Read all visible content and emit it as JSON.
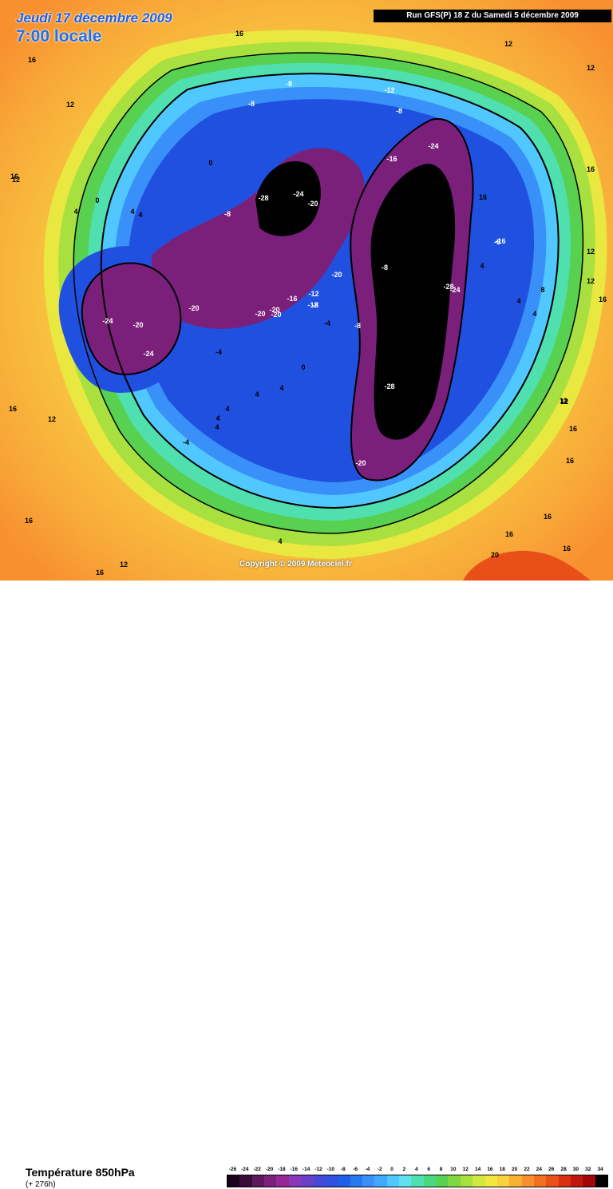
{
  "header": {
    "date": "Jeudi 17 décembre 2009",
    "time": "7:00 locale",
    "run": "Run GFS(P) 18 Z du Samedi 5 décembre 2009"
  },
  "map": {
    "copyright": "Copyright © 2009 Meteociel.fr",
    "labels": [
      {
        "text": "16"
      },
      {
        "text": "12"
      },
      {
        "text": "12"
      },
      {
        "text": "16"
      },
      {
        "text": "16"
      },
      {
        "text": "16"
      },
      {
        "text": "12"
      },
      {
        "text": "16"
      },
      {
        "text": "12"
      },
      {
        "text": "16"
      },
      {
        "text": "12"
      },
      {
        "text": "12"
      },
      {
        "text": "16"
      },
      {
        "text": "12"
      },
      {
        "text": "16"
      },
      {
        "text": "16"
      },
      {
        "text": "12"
      },
      {
        "text": "16"
      },
      {
        "text": "20"
      },
      {
        "text": "16"
      },
      {
        "text": "16"
      },
      {
        "text": "16"
      },
      {
        "text": "16"
      },
      {
        "text": "12"
      },
      {
        "text": "-8"
      },
      {
        "text": "-8"
      },
      {
        "text": "-8"
      },
      {
        "text": "-12"
      },
      {
        "text": "-8"
      },
      {
        "text": "-16"
      },
      {
        "text": "-24"
      },
      {
        "text": "-28"
      },
      {
        "text": "-24"
      },
      {
        "text": "-20"
      },
      {
        "text": "-8"
      },
      {
        "text": "0"
      },
      {
        "text": "0"
      },
      {
        "text": "4"
      },
      {
        "text": "4"
      },
      {
        "text": "4"
      },
      {
        "text": "4"
      },
      {
        "text": "-16"
      },
      {
        "text": "-8"
      },
      {
        "text": "-28"
      },
      {
        "text": "-24"
      },
      {
        "text": "-20"
      },
      {
        "text": "-12"
      },
      {
        "text": "4"
      },
      {
        "text": "8"
      },
      {
        "text": "4"
      },
      {
        "text": "-24"
      },
      {
        "text": "-20"
      },
      {
        "text": "-24"
      },
      {
        "text": "-20"
      },
      {
        "text": "-20"
      },
      {
        "text": "-20"
      },
      {
        "text": "-20"
      },
      {
        "text": "-16"
      },
      {
        "text": "-12"
      },
      {
        "text": "-8"
      },
      {
        "text": "-4"
      },
      {
        "text": "-8"
      },
      {
        "text": "-4"
      },
      {
        "text": "0"
      },
      {
        "text": "4"
      },
      {
        "text": "4"
      },
      {
        "text": "4"
      },
      {
        "text": "4"
      },
      {
        "text": "-4"
      },
      {
        "text": "-28"
      },
      {
        "text": "-20"
      },
      {
        "text": "4"
      },
      {
        "text": "12"
      },
      {
        "text": "4"
      }
    ]
  },
  "footer": {
    "title": "Température 850hPa",
    "subtitle": "(+ 276h)"
  },
  "legend": {
    "labels": [
      "-26",
      "-24",
      "-22",
      "-20",
      "-18",
      "-16",
      "-14",
      "-12",
      "-10",
      "-8",
      "-6",
      "-4",
      "-2",
      "0",
      "2",
      "4",
      "6",
      "8",
      "10",
      "12",
      "14",
      "16",
      "18",
      "20",
      "22",
      "24",
      "26",
      "28",
      "30",
      "32",
      "34"
    ],
    "colors": [
      "#1a001a",
      "#3a0a3a",
      "#5a1a5a",
      "#7a207a",
      "#962896",
      "#8a38b8",
      "#6a40c8",
      "#4848d8",
      "#3050e0",
      "#2060e8",
      "#2878f0",
      "#3890f8",
      "#40a8ff",
      "#50c8ff",
      "#60e0f0",
      "#50e0b0",
      "#48d880",
      "#58d050",
      "#80d840",
      "#a8e040",
      "#d0e840",
      "#f0e840",
      "#f8d040",
      "#f8b030",
      "#f89030",
      "#f07020",
      "#e85018",
      "#d83010",
      "#c01810",
      "#a00808",
      "#000000"
    ]
  },
  "colors": {
    "header_date": "#1f5fe0",
    "header_time": "#1f6fe8",
    "ocean_warm": "#f8a840",
    "deep_cold": "#000000"
  }
}
